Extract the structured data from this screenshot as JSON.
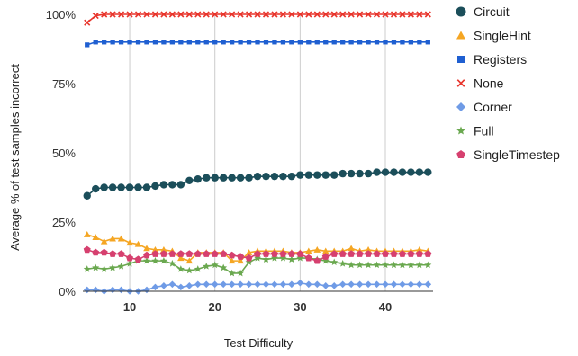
{
  "chart_data": {
    "type": "line",
    "xlabel": "Test Difficulty",
    "ylabel": "Average % of test samples incorrect",
    "xlim": [
      4.5,
      45.6
    ],
    "ylim": [
      0,
      100
    ],
    "x_ticks": [
      10,
      20,
      30,
      40
    ],
    "y_ticks": [
      "0%",
      "25%",
      "50%",
      "75%",
      "100%"
    ],
    "y_tick_values": [
      0,
      25,
      50,
      75,
      100
    ],
    "grid": "vertical",
    "legend_position": "right",
    "x": [
      5,
      6,
      7,
      8,
      9,
      10,
      11,
      12,
      13,
      14,
      15,
      16,
      17,
      18,
      19,
      20,
      21,
      22,
      23,
      24,
      25,
      26,
      27,
      28,
      29,
      30,
      31,
      32,
      33,
      34,
      35,
      36,
      37,
      38,
      39,
      40,
      41,
      42,
      43,
      44,
      45
    ],
    "series": [
      {
        "name": "Circuit",
        "color": "#1b4e5a",
        "marker": "circle",
        "values": [
          34.5,
          37,
          37.5,
          37.5,
          37.5,
          37.5,
          37.5,
          37.5,
          38,
          38.5,
          38.5,
          38.5,
          40,
          40.5,
          41,
          41,
          41,
          41,
          41,
          41,
          41.5,
          41.5,
          41.5,
          41.5,
          41.5,
          42,
          42,
          42,
          42,
          42,
          42.5,
          42.5,
          42.5,
          42.5,
          43,
          43,
          43,
          43,
          43,
          43,
          43
        ]
      },
      {
        "name": "SingleHint",
        "color": "#f5a623",
        "marker": "triangle",
        "values": [
          20.5,
          19.5,
          18,
          19,
          19,
          17.5,
          17,
          15.5,
          15,
          15,
          14.5,
          12,
          11,
          14,
          14,
          14,
          14,
          11,
          11,
          14,
          14.5,
          14.5,
          14.5,
          14.5,
          14,
          14,
          14.5,
          15,
          14.5,
          14.5,
          14.5,
          15.5,
          14.5,
          15,
          14.5,
          14.5,
          14.5,
          14.5,
          14.5,
          15,
          14.5
        ]
      },
      {
        "name": "Registers",
        "color": "#1f5fd1",
        "marker": "square",
        "values": [
          89,
          90,
          90,
          90,
          90,
          90,
          90,
          90,
          90,
          90,
          90,
          90,
          90,
          90,
          90,
          90,
          90,
          90,
          90,
          90,
          90,
          90,
          90,
          90,
          90,
          90,
          90,
          90,
          90,
          90,
          90,
          90,
          90,
          90,
          90,
          90,
          90,
          90,
          90,
          90,
          90
        ]
      },
      {
        "name": "None",
        "color": "#e8342b",
        "marker": "x",
        "values": [
          97,
          99.5,
          100,
          100,
          100,
          100,
          100,
          100,
          100,
          100,
          100,
          100,
          100,
          100,
          100,
          100,
          100,
          100,
          100,
          100,
          100,
          100,
          100,
          100,
          100,
          100,
          100,
          100,
          100,
          100,
          100,
          100,
          100,
          100,
          100,
          100,
          100,
          100,
          100,
          100,
          100
        ]
      },
      {
        "name": "Corner",
        "color": "#6f9be6",
        "marker": "diamond",
        "values": [
          0.5,
          0.5,
          0,
          0.5,
          0.5,
          0,
          0,
          0.5,
          1.5,
          2,
          2.5,
          1.5,
          2,
          2.5,
          2.5,
          2.5,
          2.5,
          2.5,
          2.5,
          2.5,
          2.5,
          2.5,
          2.5,
          2.5,
          2.5,
          3,
          2.5,
          2.5,
          2,
          2,
          2.5,
          2.5,
          2.5,
          2.5,
          2.5,
          2.5,
          2.5,
          2.5,
          2.5,
          2.5,
          2.5
        ]
      },
      {
        "name": "Full",
        "color": "#6aa84f",
        "marker": "star",
        "values": [
          8,
          8.5,
          8,
          8.5,
          9,
          10,
          11,
          11,
          11,
          11,
          10,
          8,
          7.5,
          8,
          9,
          9.5,
          8.5,
          6.5,
          6.5,
          10.5,
          12,
          11.5,
          12,
          12,
          11.5,
          12,
          12,
          11.5,
          11,
          10.5,
          10,
          9.5,
          9.5,
          9.5,
          9.5,
          9.5,
          9.5,
          9.5,
          9.5,
          9.5,
          9.5
        ]
      },
      {
        "name": "SingleTimestep",
        "color": "#d6406f",
        "marker": "pentagon",
        "values": [
          15,
          14,
          14,
          13.5,
          13.5,
          12,
          11.5,
          13,
          13.5,
          13.5,
          13.5,
          13.5,
          13.5,
          13.5,
          13.5,
          13.5,
          13.5,
          13,
          12.5,
          12,
          13.5,
          13.5,
          13.5,
          13.5,
          13.5,
          13.5,
          12,
          11,
          12.5,
          13.5,
          13.5,
          13.5,
          13.5,
          13.5,
          13.5,
          13.5,
          13.5,
          13.5,
          13.5,
          13.5,
          13.5
        ]
      }
    ]
  }
}
